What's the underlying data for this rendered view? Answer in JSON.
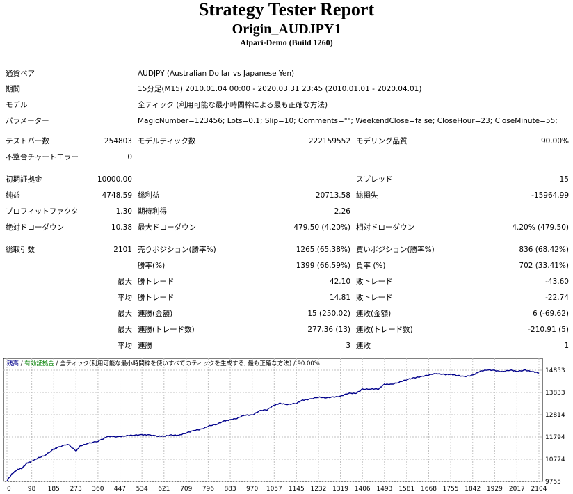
{
  "header": {
    "title": "Strategy Tester Report",
    "subtitle": "Origin_AUDJPY1",
    "server": "Alpari-Demo (Build 1260)"
  },
  "info": {
    "symbol_label": "通貨ペア",
    "symbol_value": "AUDJPY (Australian Dollar vs Japanese Yen)",
    "period_label": "期間",
    "period_value": "15分足(M15) 2010.01.04 00:00 - 2020.03.31 23:45 (2010.01.01 - 2020.04.01)",
    "model_label": "モデル",
    "model_value": "全ティック (利用可能な最小時間枠による最も正確な方法)",
    "params_label": "パラメーター",
    "params_value": "MagicNumber=123456; Lots=0.1; Slip=10; Comments=\"\"; WeekendClose=false; CloseHour=23; CloseMinute=55;"
  },
  "stats": {
    "test_bars_label": "テストバー数",
    "test_bars_value": "254803",
    "model_ticks_label": "モデルティック数",
    "model_ticks_value": "222159552",
    "model_quality_label": "モデリング品質",
    "model_quality_value": "90.00%",
    "mismatch_label": "不整合チャートエラー",
    "mismatch_value": "0",
    "initial_deposit_label": "初期証拠金",
    "initial_deposit_value": "10000.00",
    "spread_label": "スプレッド",
    "spread_value": "15",
    "net_profit_label": "純益",
    "net_profit_value": "4748.59",
    "gross_profit_label": "総利益",
    "gross_profit_value": "20713.58",
    "gross_loss_label": "総損失",
    "gross_loss_value": "-15964.99",
    "profit_factor_label": "プロフィットファクタ",
    "profit_factor_value": "1.30",
    "expected_payoff_label": "期待利得",
    "expected_payoff_value": "2.26",
    "abs_dd_label": "絶対ドローダウン",
    "abs_dd_value": "10.38",
    "max_dd_label": "最大ドローダウン",
    "max_dd_value": "479.50 (4.20%)",
    "rel_dd_label": "相対ドローダウン",
    "rel_dd_value": "4.20% (479.50)",
    "total_trades_label": "総取引数",
    "total_trades_value": "2101",
    "short_label": "売りポジション(勝率%)",
    "short_value": "1265 (65.38%)",
    "long_label": "買いポジション(勝率%)",
    "long_value": "836 (68.42%)",
    "win_rate_label": "勝率(%)",
    "win_rate_value": "1399 (66.59%)",
    "loss_rate_label": "負率 (%)",
    "loss_rate_value": "702 (33.41%)",
    "largest_label": "最大",
    "avg_label": "平均",
    "win_trade_label": "勝トレード",
    "loss_trade_label": "敗トレード",
    "largest_win_value": "42.10",
    "largest_loss_value": "-43.60",
    "avg_win_value": "14.81",
    "avg_loss_value": "-22.74",
    "max_consec_label": "最大",
    "consec_win_money_label": "連勝(金額)",
    "consec_win_money_value": "15 (250.02)",
    "consec_loss_money_label": "連敗(金額)",
    "consec_loss_money_value": "6 (-69.62)",
    "max_consec2_label": "最大",
    "consec_win_trades_label": "連勝(トレード数)",
    "consec_win_trades_value": "277.36 (13)",
    "consec_loss_trades_label": "連敗(トレード数)",
    "consec_loss_trades_value": "-210.91 (5)",
    "avg_consec_label": "平均",
    "avg_consec_win_label": "連勝",
    "avg_consec_win_value": "3",
    "avg_consec_loss_label": "連敗",
    "avg_consec_loss_value": "1"
  },
  "chart_legend": {
    "balance": "残高",
    "sep1": " / ",
    "equity": "有効証拠金",
    "sep2": " / ",
    "model": "全ティック(利用可能な最小時間枠を使いすべてのティックを生成する, 最も正確な方法)",
    "sep3": " / ",
    "quality": "90.00%"
  },
  "colors": {
    "balance_line": "#00008B",
    "equity_legend": "#008000",
    "grid": "#c0c0c0"
  },
  "chart_data": {
    "type": "line",
    "title": "",
    "xlabel": "",
    "ylabel": "",
    "x_ticks": [
      0,
      98,
      185,
      273,
      360,
      447,
      534,
      621,
      709,
      796,
      883,
      970,
      1057,
      1145,
      1232,
      1319,
      1406,
      1493,
      1581,
      1668,
      1755,
      1842,
      1929,
      2017,
      2104
    ],
    "y_ticks": [
      9755,
      10774,
      11794,
      12814,
      13833,
      14853
    ],
    "xlim": [
      0,
      2104
    ],
    "ylim": [
      9755,
      14853
    ],
    "grid": true,
    "series": [
      {
        "name": "残高",
        "x": [
          0,
          20,
          40,
          60,
          80,
          98,
          120,
          150,
          185,
          200,
          240,
          273,
          290,
          320,
          360,
          400,
          447,
          470,
          500,
          534,
          560,
          600,
          621,
          650,
          680,
          709,
          740,
          770,
          796,
          830,
          860,
          883,
          910,
          940,
          970,
          1000,
          1030,
          1057,
          1080,
          1110,
          1145,
          1170,
          1200,
          1232,
          1260,
          1290,
          1319,
          1350,
          1380,
          1406,
          1440,
          1470,
          1493,
          1520,
          1550,
          1581,
          1610,
          1640,
          1668,
          1700,
          1730,
          1755,
          1780,
          1810,
          1842,
          1870,
          1900,
          1929,
          1960,
          1990,
          2017,
          2050,
          2080,
          2104
        ],
        "y": [
          9790,
          10100,
          10290,
          10370,
          10600,
          10680,
          10820,
          10950,
          11230,
          11310,
          11470,
          11150,
          11380,
          11500,
          11600,
          11820,
          11800,
          11850,
          11880,
          11890,
          11890,
          11830,
          11830,
          11880,
          11870,
          11980,
          12090,
          12150,
          12290,
          12380,
          12530,
          12580,
          12650,
          12800,
          12790,
          13000,
          13050,
          13250,
          13330,
          13280,
          13340,
          13480,
          13530,
          13620,
          13590,
          13620,
          13660,
          13800,
          13790,
          13980,
          13990,
          14000,
          14210,
          14200,
          14300,
          14420,
          14500,
          14560,
          14640,
          14700,
          14650,
          14660,
          14620,
          14560,
          14620,
          14800,
          14870,
          14840,
          14780,
          14860,
          14800,
          14850,
          14780,
          14730
        ]
      }
    ]
  }
}
